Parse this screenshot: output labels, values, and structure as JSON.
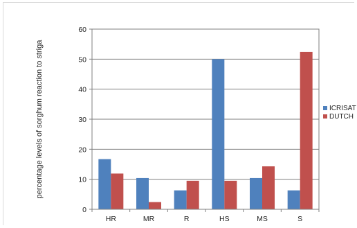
{
  "chart_data": {
    "type": "bar",
    "title": "",
    "xlabel": "",
    "ylabel": "percentage levels of sorghum reaction to striga",
    "categories": [
      "HR",
      "MR",
      "R",
      "HS",
      "MS",
      "S"
    ],
    "series": [
      {
        "name": "ICRISAT",
        "color": "#4f81bd",
        "values": [
          16.7,
          10.4,
          6.3,
          50,
          10.4,
          6.3
        ]
      },
      {
        "name": "DUTCH",
        "color": "#c0504d",
        "values": [
          11.9,
          2.4,
          9.5,
          9.5,
          14.3,
          52.4
        ]
      }
    ],
    "ylim": [
      0,
      60
    ],
    "yticks": [
      0,
      10,
      20,
      30,
      40,
      50,
      60
    ],
    "grid": true,
    "legend_position": "right"
  }
}
